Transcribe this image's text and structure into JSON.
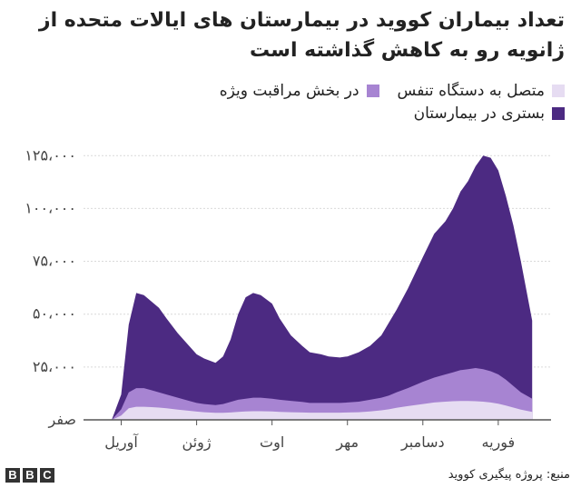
{
  "header": {
    "title": "تعداد بیماران کووید در بیمارستان های ایالات متحده از ژانویه رو به کاهش گذاشته است"
  },
  "legend": [
    {
      "label": "متصل به دستگاه تنفس",
      "color": "#e6dcf2"
    },
    {
      "label": "در بخش مراقبت ویژه",
      "color": "#a784d2"
    },
    {
      "label": "بستری در بیمارستان",
      "color": "#4c2a82"
    }
  ],
  "footer": {
    "source": "منبع: پروژه پیگیری کووید",
    "logo_letters": [
      "B",
      "B",
      "C"
    ]
  },
  "chart_data": {
    "type": "area",
    "stacked": false,
    "x_label": "",
    "y_label": "",
    "ylim": [
      0,
      135000
    ],
    "grid": true,
    "legend_position": "top-right",
    "y_ticks": [
      {
        "value": 0,
        "label": "صفر"
      },
      {
        "value": 25000,
        "label": "۲۵،۰۰۰"
      },
      {
        "value": 50000,
        "label": "۵۰،۰۰۰"
      },
      {
        "value": 75000,
        "label": "۷۵،۰۰۰"
      },
      {
        "value": 100000,
        "label": "۱۰۰،۰۰۰"
      },
      {
        "value": 125000,
        "label": "۱۲۵،۰۰۰"
      }
    ],
    "x_ticks": [
      {
        "month_index": 1,
        "label": "آوریل"
      },
      {
        "month_index": 3,
        "label": "ژوئن"
      },
      {
        "month_index": 5,
        "label": "اوت"
      },
      {
        "month_index": 7,
        "label": "مهر"
      },
      {
        "month_index": 9,
        "label": "دسامبر"
      },
      {
        "month_index": 11,
        "label": "فوریه"
      }
    ],
    "x": [
      0,
      0.4,
      0.75,
      1.0,
      1.2,
      1.4,
      1.6,
      1.8,
      2.0,
      2.2,
      2.5,
      2.8,
      3.0,
      3.2,
      3.5,
      3.7,
      3.9,
      4.1,
      4.3,
      4.5,
      4.7,
      5.0,
      5.2,
      5.5,
      5.8,
      6.0,
      6.3,
      6.5,
      6.8,
      7.0,
      7.3,
      7.6,
      7.9,
      8.1,
      8.3,
      8.6,
      9.0,
      9.3,
      9.6,
      9.8,
      10.0,
      10.2,
      10.4,
      10.6,
      10.8,
      11.0,
      11.2,
      11.4,
      11.6,
      11.9
    ],
    "series": [
      {
        "name": "بستری در بیمارستان",
        "color": "#4c2a82",
        "values": [
          0,
          0,
          0,
          12000,
          45000,
          60000,
          59000,
          56000,
          53000,
          48000,
          41000,
          35000,
          31000,
          29000,
          27000,
          30000,
          38000,
          50000,
          58000,
          60000,
          59000,
          55000,
          48000,
          40000,
          35000,
          32000,
          31000,
          30000,
          29500,
          30000,
          32000,
          35000,
          40000,
          46000,
          52000,
          62000,
          77000,
          88000,
          94000,
          100000,
          108000,
          113000,
          120000,
          125000,
          124000,
          118000,
          106000,
          92000,
          75000,
          47000
        ]
      },
      {
        "name": "در بخش مراقبت ویژه",
        "color": "#a784d2",
        "values": [
          0,
          0,
          0,
          5000,
          13000,
          15000,
          15000,
          14000,
          13000,
          12000,
          10500,
          9000,
          8000,
          7500,
          7000,
          7500,
          8500,
          9500,
          10000,
          10500,
          10500,
          10000,
          9500,
          9000,
          8500,
          8000,
          8000,
          8000,
          8000,
          8200,
          8600,
          9500,
          10500,
          11500,
          13000,
          15000,
          18000,
          20000,
          21500,
          22500,
          23500,
          24000,
          24500,
          24000,
          23000,
          21500,
          19000,
          16000,
          13000,
          10000
        ]
      },
      {
        "name": "متصل به دستگاه تنفس",
        "color": "#e6dcf2",
        "values": [
          0,
          0,
          0,
          2000,
          5500,
          6200,
          6200,
          6000,
          5800,
          5500,
          4800,
          4300,
          3900,
          3600,
          3300,
          3300,
          3500,
          3800,
          4000,
          4100,
          4100,
          4000,
          3800,
          3600,
          3500,
          3400,
          3400,
          3400,
          3400,
          3500,
          3600,
          4000,
          4500,
          5000,
          5700,
          6500,
          7500,
          8200,
          8600,
          8800,
          8900,
          8900,
          8800,
          8600,
          8200,
          7600,
          6800,
          5800,
          4800,
          3800
        ]
      }
    ]
  }
}
